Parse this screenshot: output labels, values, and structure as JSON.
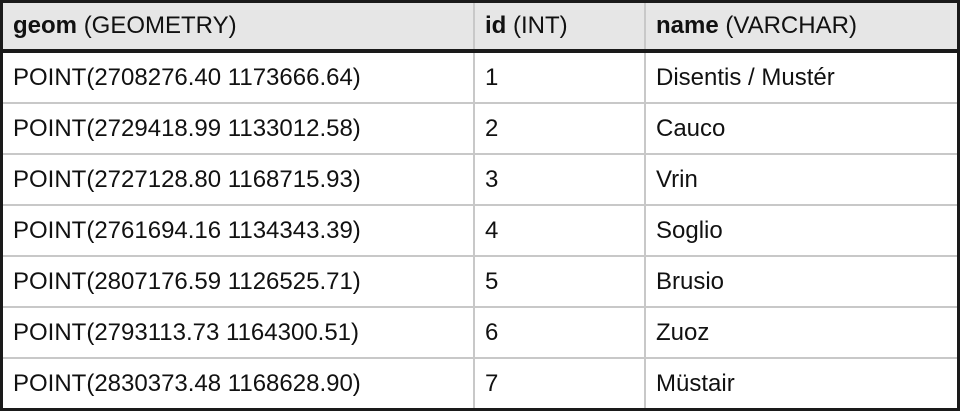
{
  "table": {
    "columns": [
      {
        "name": "geom",
        "type": "(GEOMETRY)"
      },
      {
        "name": "id",
        "type": "(INT)"
      },
      {
        "name": "name",
        "type": "(VARCHAR)"
      }
    ],
    "rows": [
      {
        "geom": "POINT(2708276.40 1173666.64)",
        "id": "1",
        "name": "Disentis / Mustér"
      },
      {
        "geom": "POINT(2729418.99 1133012.58)",
        "id": "2",
        "name": "Cauco"
      },
      {
        "geom": "POINT(2727128.80 1168715.93)",
        "id": "3",
        "name": "Vrin"
      },
      {
        "geom": "POINT(2761694.16 1134343.39)",
        "id": "4",
        "name": "Soglio"
      },
      {
        "geom": "POINT(2807176.59 1126525.71)",
        "id": "5",
        "name": "Brusio"
      },
      {
        "geom": "POINT(2793113.73 1164300.51)",
        "id": "6",
        "name": "Zuoz"
      },
      {
        "geom": "POINT(2830373.48 1168628.90)",
        "id": "7",
        "name": "Müstair"
      }
    ]
  }
}
